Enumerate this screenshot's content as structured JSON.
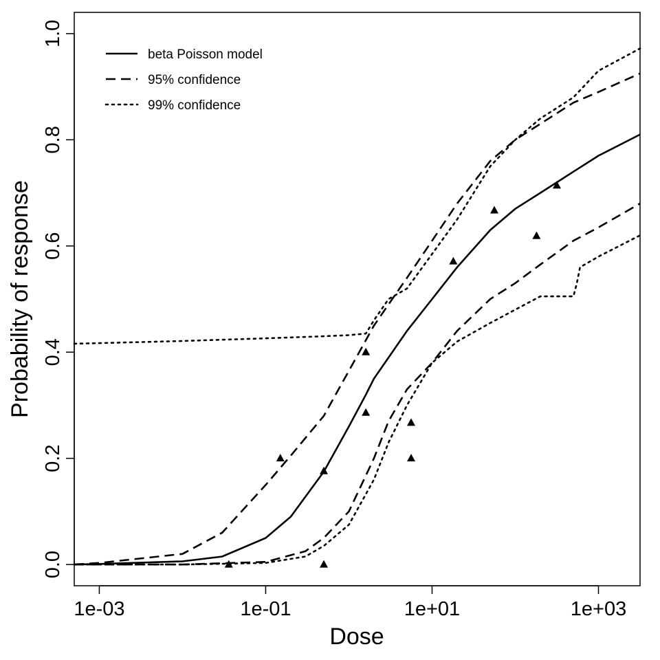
{
  "chart_data": {
    "type": "scatter",
    "title": "",
    "xlabel": "Dose",
    "ylabel": "Probability of response",
    "x_scale": "log",
    "xlim": [
      0.0005,
      3162
    ],
    "ylim": [
      -0.04,
      1.04
    ],
    "x_ticks": [
      0.001,
      0.1,
      10,
      1000
    ],
    "x_tick_labels": [
      "1e-03",
      "1e-01",
      "1e+01",
      "1e+03"
    ],
    "y_ticks": [
      0.0,
      0.2,
      0.4,
      0.6,
      0.8,
      1.0
    ],
    "y_tick_labels": [
      "0.0",
      "0.2",
      "0.4",
      "0.6",
      "0.8",
      "1.0"
    ],
    "grid": false,
    "legend_position": "top-left",
    "legend": [
      {
        "label": "beta Poisson model",
        "style": "solid"
      },
      {
        "label": "95% confidence",
        "style": "dashed"
      },
      {
        "label": "99% confidence",
        "style": "dotted"
      }
    ],
    "points": {
      "marker": "triangle",
      "x": [
        0.036,
        0.15,
        0.5,
        0.5,
        1.6,
        1.6,
        5.6,
        5.6,
        18,
        56,
        180,
        316
      ],
      "y": [
        0.0,
        0.2,
        0.176,
        0.0,
        0.286,
        0.4,
        0.267,
        0.2,
        0.571,
        0.667,
        0.619,
        0.714
      ]
    },
    "series": [
      {
        "style": "solid",
        "x": [
          0.0005,
          0.001,
          0.01,
          0.03,
          0.1,
          0.2,
          0.5,
          1,
          1.6,
          2,
          5,
          10,
          20,
          50,
          100,
          200,
          500,
          1000,
          3162
        ],
        "y": [
          0.0,
          0.001,
          0.006,
          0.015,
          0.05,
          0.09,
          0.175,
          0.26,
          0.32,
          0.35,
          0.44,
          0.5,
          0.56,
          0.63,
          0.67,
          0.7,
          0.74,
          0.77,
          0.81
        ]
      },
      {
        "style": "dashed",
        "x": [
          0.0005,
          0.001,
          0.01,
          0.03,
          0.1,
          0.2,
          0.5,
          1,
          2,
          3,
          5,
          10,
          20,
          50,
          100,
          200,
          500,
          1000,
          3162
        ],
        "y": [
          0.0,
          0.003,
          0.02,
          0.06,
          0.15,
          0.205,
          0.28,
          0.365,
          0.45,
          0.49,
          0.54,
          0.61,
          0.68,
          0.76,
          0.8,
          0.83,
          0.87,
          0.89,
          0.925
        ]
      },
      {
        "style": "dashed",
        "x": [
          0.0005,
          0.01,
          0.1,
          0.3,
          0.5,
          1,
          2,
          3,
          5,
          10,
          20,
          50,
          100,
          200,
          500,
          1000,
          3162
        ],
        "y": [
          0.0,
          0.0,
          0.005,
          0.025,
          0.05,
          0.1,
          0.2,
          0.27,
          0.33,
          0.38,
          0.44,
          0.5,
          0.53,
          0.565,
          0.61,
          0.635,
          0.68
        ]
      },
      {
        "style": "dotted",
        "x": [
          0.0005,
          0.001,
          0.01,
          0.1,
          0.5,
          1,
          1.6,
          2,
          3,
          5,
          10,
          20,
          50,
          100,
          200,
          500,
          1000,
          3162
        ],
        "y": [
          0.416,
          0.417,
          0.421,
          0.426,
          0.43,
          0.432,
          0.435,
          0.46,
          0.5,
          0.52,
          0.585,
          0.65,
          0.75,
          0.8,
          0.84,
          0.88,
          0.93,
          0.972
        ]
      },
      {
        "style": "dotted",
        "x": [
          0.0005,
          0.01,
          0.1,
          0.3,
          0.5,
          1,
          2,
          3,
          5,
          10,
          20,
          50,
          100,
          200,
          500,
          550,
          600,
          1000,
          3162
        ],
        "y": [
          0.0,
          0.0,
          0.003,
          0.015,
          0.035,
          0.075,
          0.16,
          0.23,
          0.3,
          0.38,
          0.42,
          0.455,
          0.48,
          0.505,
          0.505,
          0.53,
          0.56,
          0.58,
          0.62
        ]
      }
    ]
  }
}
